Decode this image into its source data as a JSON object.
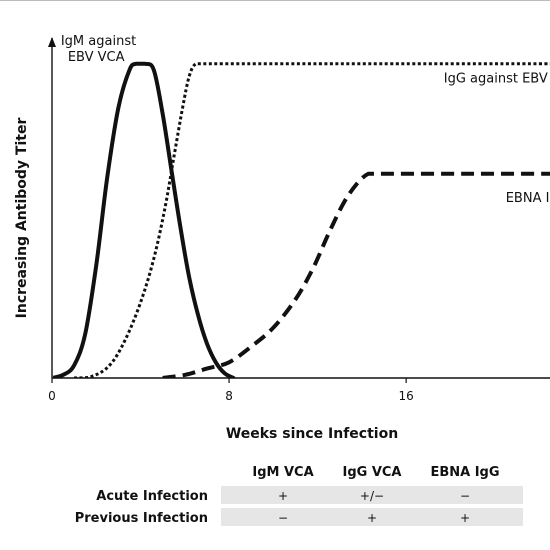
{
  "chart_data": {
    "type": "line",
    "title": "",
    "xlabel": "Weeks since Infection",
    "ylabel": "Increasing Antibody Titer",
    "xlim": [
      0,
      22.5
    ],
    "ylim": [
      0,
      1.05
    ],
    "x_ticks": [
      0,
      8,
      16
    ],
    "x_tick_labels": [
      "0",
      "8",
      "16"
    ],
    "y_ticks": [],
    "grid": false,
    "legend": "none",
    "series": [
      {
        "name": "IgM against EBV VCA",
        "style": "solid",
        "width": 4,
        "color": "#111111",
        "x": [
          0,
          0.5,
          1,
          1.5,
          2,
          2.5,
          3,
          3.5,
          3.8,
          4.2,
          4.6,
          5,
          5.4,
          5.8,
          6.2,
          6.6,
          7,
          7.4,
          7.8,
          8.2
        ],
        "y": [
          0,
          0.01,
          0.04,
          0.14,
          0.36,
          0.64,
          0.86,
          0.98,
          1.0,
          1.0,
          0.98,
          0.84,
          0.66,
          0.48,
          0.32,
          0.2,
          0.11,
          0.05,
          0.015,
          0
        ]
      },
      {
        "name": "IgG against EBV VCA",
        "style": "dotted",
        "width": 3,
        "color": "#111111",
        "x": [
          1,
          1.8,
          2.6,
          3.3,
          4,
          4.6,
          5.1,
          5.5,
          5.9,
          6.2,
          6.5,
          7,
          8,
          12,
          16,
          22.5
        ],
        "y": [
          0,
          0.005,
          0.04,
          0.12,
          0.24,
          0.38,
          0.54,
          0.7,
          0.86,
          0.96,
          1.0,
          1.0,
          1.0,
          1.0,
          1.0,
          1.0
        ]
      },
      {
        "name": "EBNA IgG",
        "style": "dashed",
        "width": 4,
        "color": "#111111",
        "x": [
          5,
          6,
          7,
          8,
          9,
          10,
          11,
          11.8,
          12.5,
          13.2,
          13.8,
          14.3,
          14.8,
          16,
          18,
          20,
          22.5
        ],
        "y": [
          0,
          0.01,
          0.03,
          0.05,
          0.1,
          0.16,
          0.25,
          0.35,
          0.46,
          0.56,
          0.62,
          0.65,
          0.65,
          0.65,
          0.65,
          0.65,
          0.65
        ]
      }
    ],
    "annotations": [
      {
        "key": "igm",
        "lines": [
          "IgM against",
          "EBV VCA"
        ],
        "at": [
          0.4,
          1.06
        ]
      },
      {
        "key": "igg",
        "lines": [
          "IgG against EBV"
        ],
        "at": [
          17.7,
          0.94
        ]
      },
      {
        "key": "ebna",
        "lines": [
          "EBNA I"
        ],
        "at": [
          20.5,
          0.56
        ]
      }
    ]
  },
  "table": {
    "columns": [
      "IgM VCA",
      "IgG VCA",
      "EBNA IgG"
    ],
    "rows": [
      {
        "label": "Acute Infection",
        "values": [
          "+",
          "+/−",
          "−"
        ]
      },
      {
        "label": "Previous Infection",
        "values": [
          "−",
          "+",
          "+"
        ]
      }
    ],
    "shading": "#e6e6e6"
  }
}
